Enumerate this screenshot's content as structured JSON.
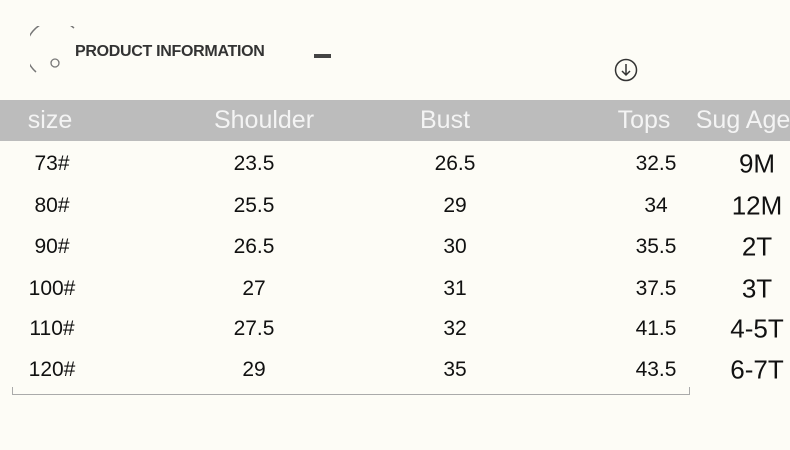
{
  "header": {
    "title": "PRODUCT INFORMATION"
  },
  "table": {
    "columns": [
      "size",
      "Shoulder",
      "Bust",
      "Tops",
      "Sug Age"
    ],
    "rows": [
      [
        "73#",
        "23.5",
        "26.5",
        "32.5",
        "9M"
      ],
      [
        "80#",
        "25.5",
        "29",
        "34",
        "12M"
      ],
      [
        "90#",
        "26.5",
        "30",
        "35.5",
        "2T"
      ],
      [
        "100#",
        "27",
        "31",
        "37.5",
        "3T"
      ],
      [
        "110#",
        "27.5",
        "32",
        "41.5",
        "4-5T"
      ],
      [
        "120#",
        "29",
        "35",
        "43.5",
        "6-7T"
      ]
    ]
  },
  "colors": {
    "header_band": "#bcbcbc",
    "background": "#fdfcf6"
  }
}
